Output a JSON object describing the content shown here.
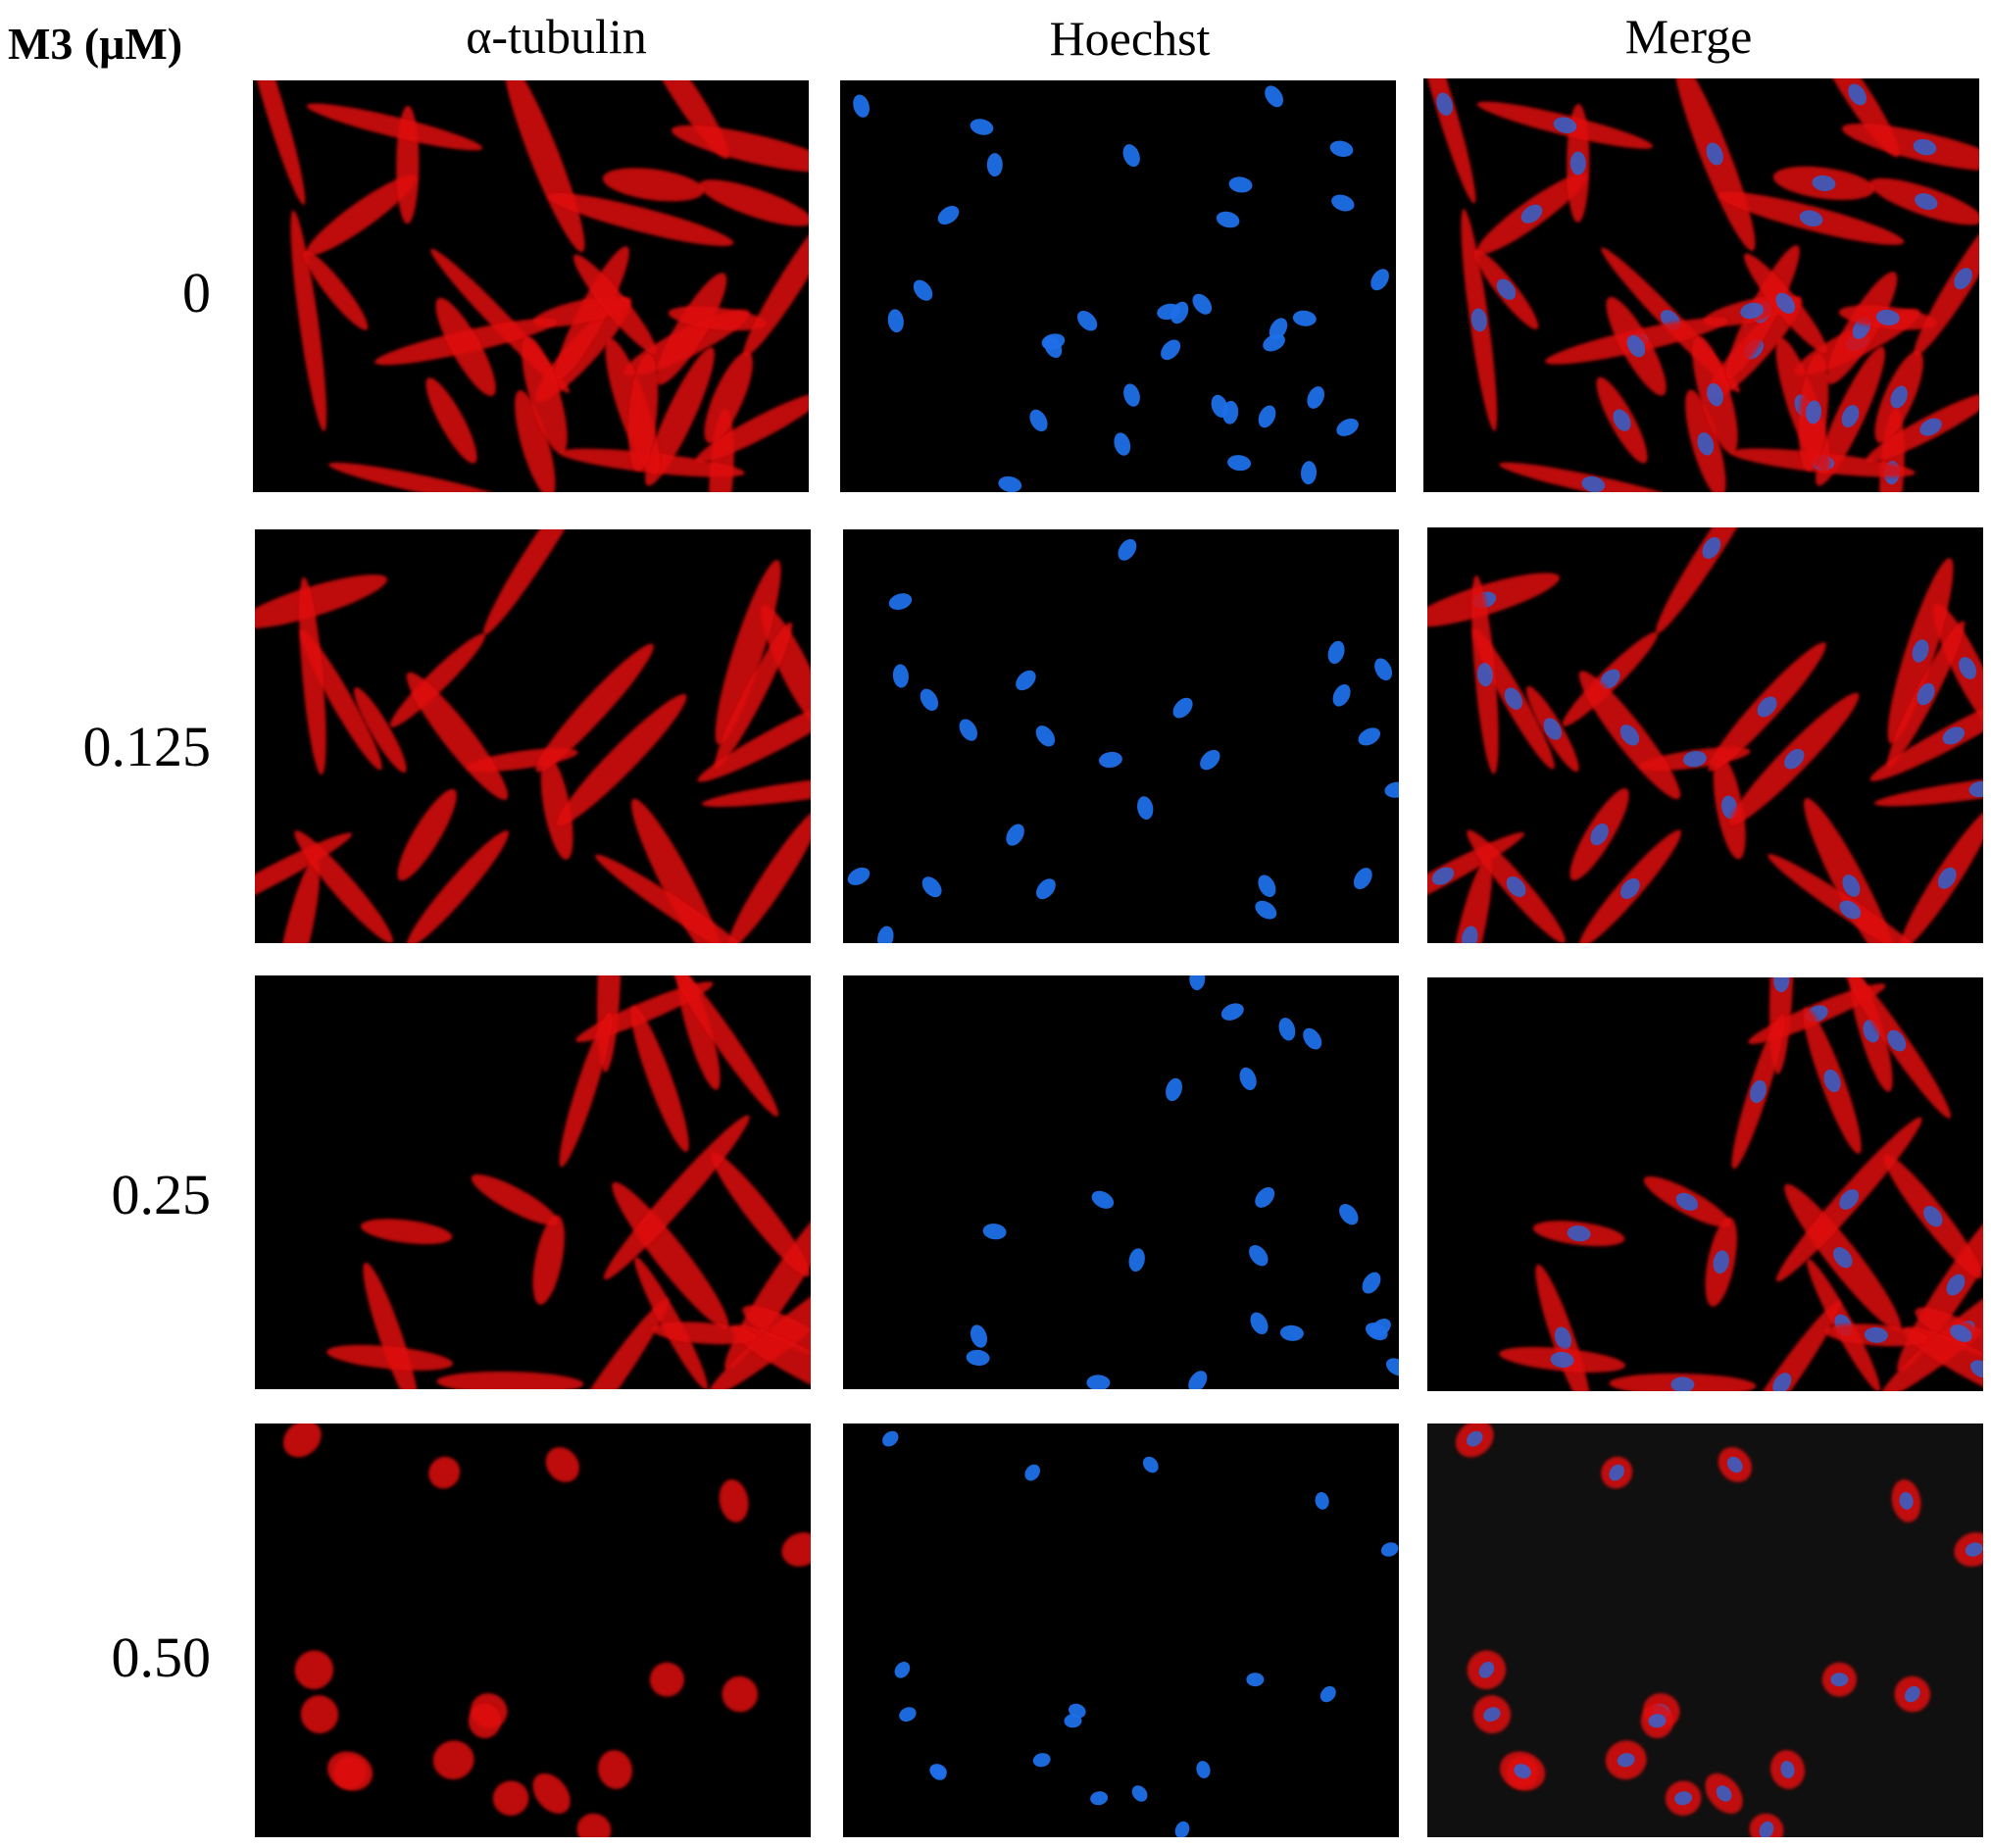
{
  "figure": {
    "concentration_label": "M3 (μM)",
    "columns": [
      {
        "name": "α-tubulin",
        "stain": "tubulin"
      },
      {
        "name": "Hoechst",
        "stain": "hoechst"
      },
      {
        "name": "Merge",
        "stain": "merge"
      }
    ],
    "rows": [
      {
        "label": "0"
      },
      {
        "label": "0.125"
      },
      {
        "label": "0.25"
      },
      {
        "label": "0.50"
      }
    ],
    "colors": {
      "tubulin": "#e01010",
      "hoechst": "#1e6fe8",
      "background": "#000000"
    }
  }
}
